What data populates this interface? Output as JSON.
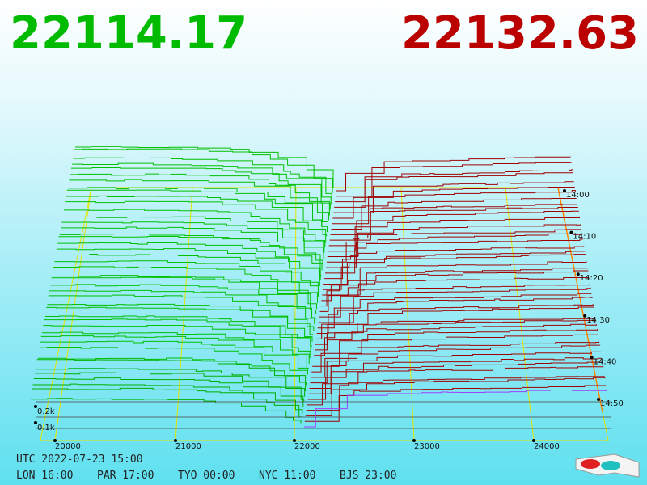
{
  "header": {
    "bid": "22114.17",
    "ask": "22132.63"
  },
  "axis": {
    "price_labels": [
      "20000",
      "21000",
      "22000",
      "23000",
      "24000"
    ],
    "time_labels": [
      "14:00",
      "14:10",
      "14:20",
      "14:30",
      "14:40",
      "14:50"
    ],
    "depth_labels": [
      "0.2k",
      "0.1k"
    ]
  },
  "footer": {
    "utc": "UTC 2022-07-23 15:00",
    "clocks": [
      "LON 16:00",
      "PAR 17:00",
      "TYO 00:00",
      "NYC 11:00",
      "BJS 23:00"
    ]
  }
}
